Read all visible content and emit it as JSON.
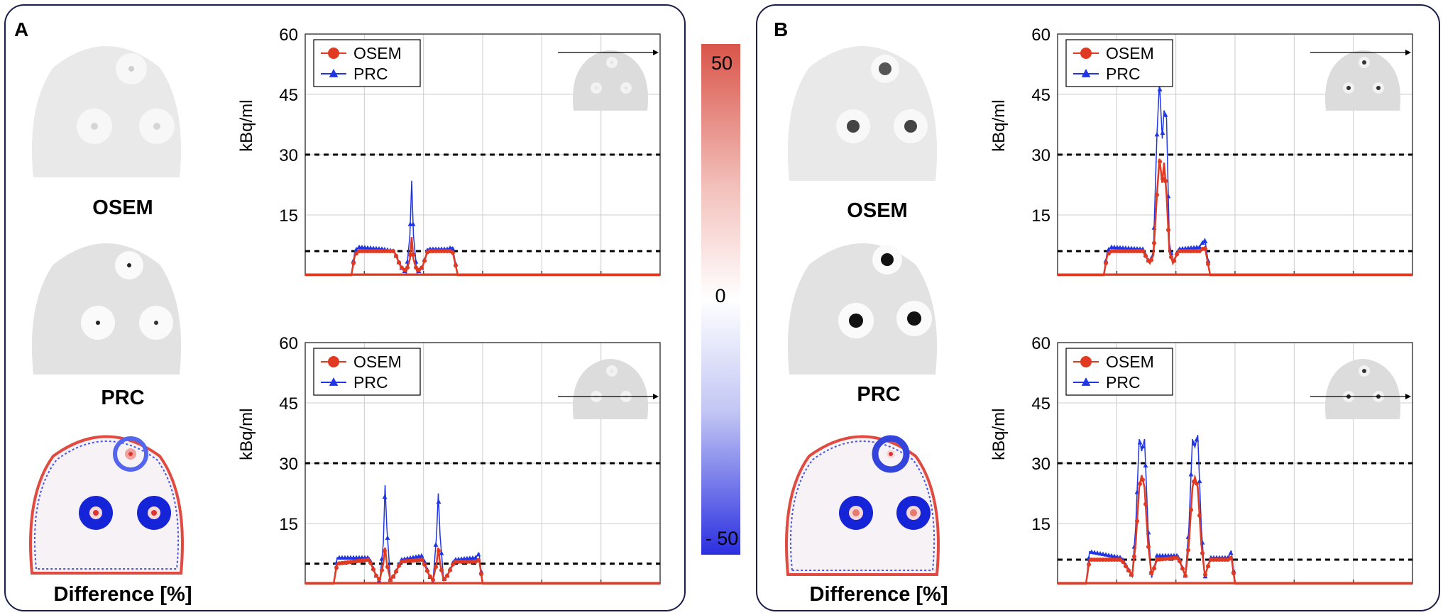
{
  "panels": [
    {
      "letter": "A",
      "image_captions": {
        "top": "OSEM",
        "middle": "PRC",
        "bottom": "Difference [%]"
      }
    },
    {
      "letter": "B",
      "image_captions": {
        "top": "OSEM",
        "middle": "PRC",
        "bottom": "Difference [%]"
      }
    }
  ],
  "colorbar": {
    "max_label": "50",
    "mid_label": "0",
    "min_label": "- 50",
    "colors": {
      "high": "#d9554a",
      "mid": "#ffffff",
      "low": "#2b2fe0"
    }
  },
  "colors": {
    "osem": "#e03a22",
    "prc": "#1f35e6",
    "panel_border": "#1a1f4a"
  },
  "chart_data": [
    {
      "id": "A-top",
      "type": "line",
      "xlabel": "",
      "ylabel": "kBq/ml",
      "ylim": [
        0,
        60
      ],
      "yticks": [
        15,
        30,
        45,
        60
      ],
      "xlim": [
        0,
        100
      ],
      "reference_lines": [
        30,
        6
      ],
      "legend": [
        "OSEM",
        "PRC"
      ],
      "legend_position": "top-left",
      "series": [
        {
          "name": "OSEM",
          "points": [
            [
              0,
              0
            ],
            [
              13,
              0
            ],
            [
              14,
              5
            ],
            [
              15,
              6
            ],
            [
              22,
              6
            ],
            [
              25,
              6
            ],
            [
              27,
              2
            ],
            [
              28.5,
              1
            ],
            [
              29.5,
              4
            ],
            [
              30,
              9.5
            ],
            [
              30.5,
              4
            ],
            [
              31.5,
              1
            ],
            [
              33,
              2
            ],
            [
              34.5,
              6
            ],
            [
              40,
              6
            ],
            [
              41.5,
              6
            ],
            [
              43,
              0
            ],
            [
              100,
              0
            ]
          ]
        },
        {
          "name": "PRC",
          "points": [
            [
              0,
              0
            ],
            [
              13,
              0
            ],
            [
              14,
              6
            ],
            [
              15,
              7
            ],
            [
              22,
              6.5
            ],
            [
              25,
              6
            ],
            [
              27,
              2
            ],
            [
              28.5,
              0.5
            ],
            [
              29.5,
              10
            ],
            [
              30,
              23.5
            ],
            [
              30.5,
              10
            ],
            [
              31.5,
              0.5
            ],
            [
              33,
              2
            ],
            [
              34.5,
              6.5
            ],
            [
              40,
              6.5
            ],
            [
              41.5,
              7
            ],
            [
              43,
              0
            ],
            [
              100,
              0
            ]
          ]
        }
      ]
    },
    {
      "id": "A-bottom",
      "type": "line",
      "xlabel": "",
      "ylabel": "kBq/ml",
      "ylim": [
        0,
        60
      ],
      "yticks": [
        15,
        30,
        45,
        60
      ],
      "xlim": [
        0,
        100
      ],
      "reference_lines": [
        30,
        5
      ],
      "legend": [
        "OSEM",
        "PRC"
      ],
      "legend_position": "top-left",
      "series": [
        {
          "name": "OSEM",
          "points": [
            [
              0,
              0
            ],
            [
              8,
              0
            ],
            [
              9,
              5
            ],
            [
              18,
              6
            ],
            [
              20,
              2
            ],
            [
              21,
              1
            ],
            [
              22,
              5
            ],
            [
              22.5,
              9
            ],
            [
              23,
              5
            ],
            [
              24,
              1
            ],
            [
              25,
              2
            ],
            [
              27,
              5.5
            ],
            [
              33,
              6
            ],
            [
              35,
              2
            ],
            [
              36,
              1
            ],
            [
              37,
              5
            ],
            [
              37.5,
              9
            ],
            [
              38,
              5
            ],
            [
              39,
              1
            ],
            [
              40,
              2
            ],
            [
              42,
              5.5
            ],
            [
              48,
              5.5
            ],
            [
              49,
              6
            ],
            [
              50,
              0
            ],
            [
              100,
              0
            ]
          ]
        },
        {
          "name": "PRC",
          "points": [
            [
              0,
              0
            ],
            [
              8,
              0
            ],
            [
              9,
              6.5
            ],
            [
              18,
              6.5
            ],
            [
              20,
              2
            ],
            [
              21,
              0.5
            ],
            [
              22,
              10
            ],
            [
              22.5,
              24.5
            ],
            [
              23,
              14
            ],
            [
              24,
              1
            ],
            [
              25,
              2
            ],
            [
              27,
              6
            ],
            [
              33,
              7
            ],
            [
              35,
              2
            ],
            [
              36,
              0.5
            ],
            [
              37,
              12
            ],
            [
              37.5,
              22.5
            ],
            [
              38,
              12
            ],
            [
              39,
              1
            ],
            [
              40,
              2
            ],
            [
              42,
              6
            ],
            [
              48,
              6.5
            ],
            [
              49,
              7.5
            ],
            [
              50,
              0
            ],
            [
              100,
              0
            ]
          ]
        }
      ]
    },
    {
      "id": "B-top",
      "type": "line",
      "xlabel": "",
      "ylabel": "kBq/ml",
      "ylim": [
        0,
        60
      ],
      "yticks": [
        15,
        30,
        45,
        60
      ],
      "xlim": [
        0,
        100
      ],
      "reference_lines": [
        30,
        6
      ],
      "legend": [
        "OSEM",
        "PRC"
      ],
      "legend_position": "top-left",
      "series": [
        {
          "name": "OSEM",
          "points": [
            [
              0,
              0
            ],
            [
              13,
              0
            ],
            [
              14,
              5
            ],
            [
              15,
              6
            ],
            [
              24,
              6
            ],
            [
              26,
              3
            ],
            [
              27,
              5
            ],
            [
              28,
              20
            ],
            [
              28.7,
              29
            ],
            [
              29.5,
              23
            ],
            [
              30,
              28
            ],
            [
              30.7,
              20
            ],
            [
              31.5,
              6
            ],
            [
              32.5,
              3
            ],
            [
              34,
              6
            ],
            [
              40,
              6
            ],
            [
              41.5,
              7
            ],
            [
              43,
              0
            ],
            [
              100,
              0
            ]
          ]
        },
        {
          "name": "PRC",
          "points": [
            [
              0,
              0
            ],
            [
              13,
              0
            ],
            [
              14,
              6
            ],
            [
              15,
              7
            ],
            [
              24,
              6.5
            ],
            [
              26,
              3
            ],
            [
              27,
              6
            ],
            [
              28,
              35
            ],
            [
              28.7,
              48
            ],
            [
              29.5,
              34
            ],
            [
              30,
              41
            ],
            [
              30.7,
              39
            ],
            [
              31.5,
              8
            ],
            [
              32.5,
              3
            ],
            [
              34,
              6.5
            ],
            [
              40,
              7
            ],
            [
              41.5,
              9
            ],
            [
              43,
              0
            ],
            [
              100,
              0
            ]
          ]
        }
      ]
    },
    {
      "id": "B-bottom",
      "type": "line",
      "xlabel": "",
      "ylabel": "kBq/ml",
      "ylim": [
        0,
        60
      ],
      "yticks": [
        15,
        30,
        45,
        60
      ],
      "xlim": [
        0,
        100
      ],
      "reference_lines": [
        30,
        6
      ],
      "legend": [
        "OSEM",
        "PRC"
      ],
      "legend_position": "top-left",
      "series": [
        {
          "name": "OSEM",
          "points": [
            [
              0,
              0
            ],
            [
              8,
              0
            ],
            [
              9,
              6
            ],
            [
              18,
              6
            ],
            [
              21,
              2
            ],
            [
              22,
              10
            ],
            [
              23,
              24
            ],
            [
              23.7,
              27
            ],
            [
              24.5,
              24
            ],
            [
              25.5,
              10
            ],
            [
              26.5,
              2
            ],
            [
              28,
              6
            ],
            [
              34,
              6.5
            ],
            [
              36,
              2
            ],
            [
              37,
              10
            ],
            [
              38,
              24
            ],
            [
              38.7,
              26.5
            ],
            [
              39.5,
              24
            ],
            [
              40.5,
              10
            ],
            [
              41.5,
              2
            ],
            [
              43,
              6
            ],
            [
              48,
              6
            ],
            [
              49,
              6.5
            ],
            [
              50,
              0
            ],
            [
              100,
              0
            ]
          ]
        },
        {
          "name": "PRC",
          "points": [
            [
              0,
              0
            ],
            [
              8,
              0
            ],
            [
              9,
              8
            ],
            [
              18,
              6.5
            ],
            [
              21,
              2
            ],
            [
              22,
              14
            ],
            [
              23,
              36
            ],
            [
              23.7,
              33
            ],
            [
              24.5,
              36
            ],
            [
              25.5,
              14
            ],
            [
              26.5,
              1.5
            ],
            [
              28,
              7
            ],
            [
              34,
              7
            ],
            [
              36,
              2
            ],
            [
              37,
              14
            ],
            [
              38,
              36
            ],
            [
              38.7,
              34
            ],
            [
              39.5,
              37
            ],
            [
              40.5,
              14
            ],
            [
              41.5,
              1.5
            ],
            [
              43,
              6.5
            ],
            [
              48,
              6.5
            ],
            [
              49,
              8
            ],
            [
              50,
              0
            ],
            [
              100,
              0
            ]
          ]
        }
      ]
    }
  ]
}
